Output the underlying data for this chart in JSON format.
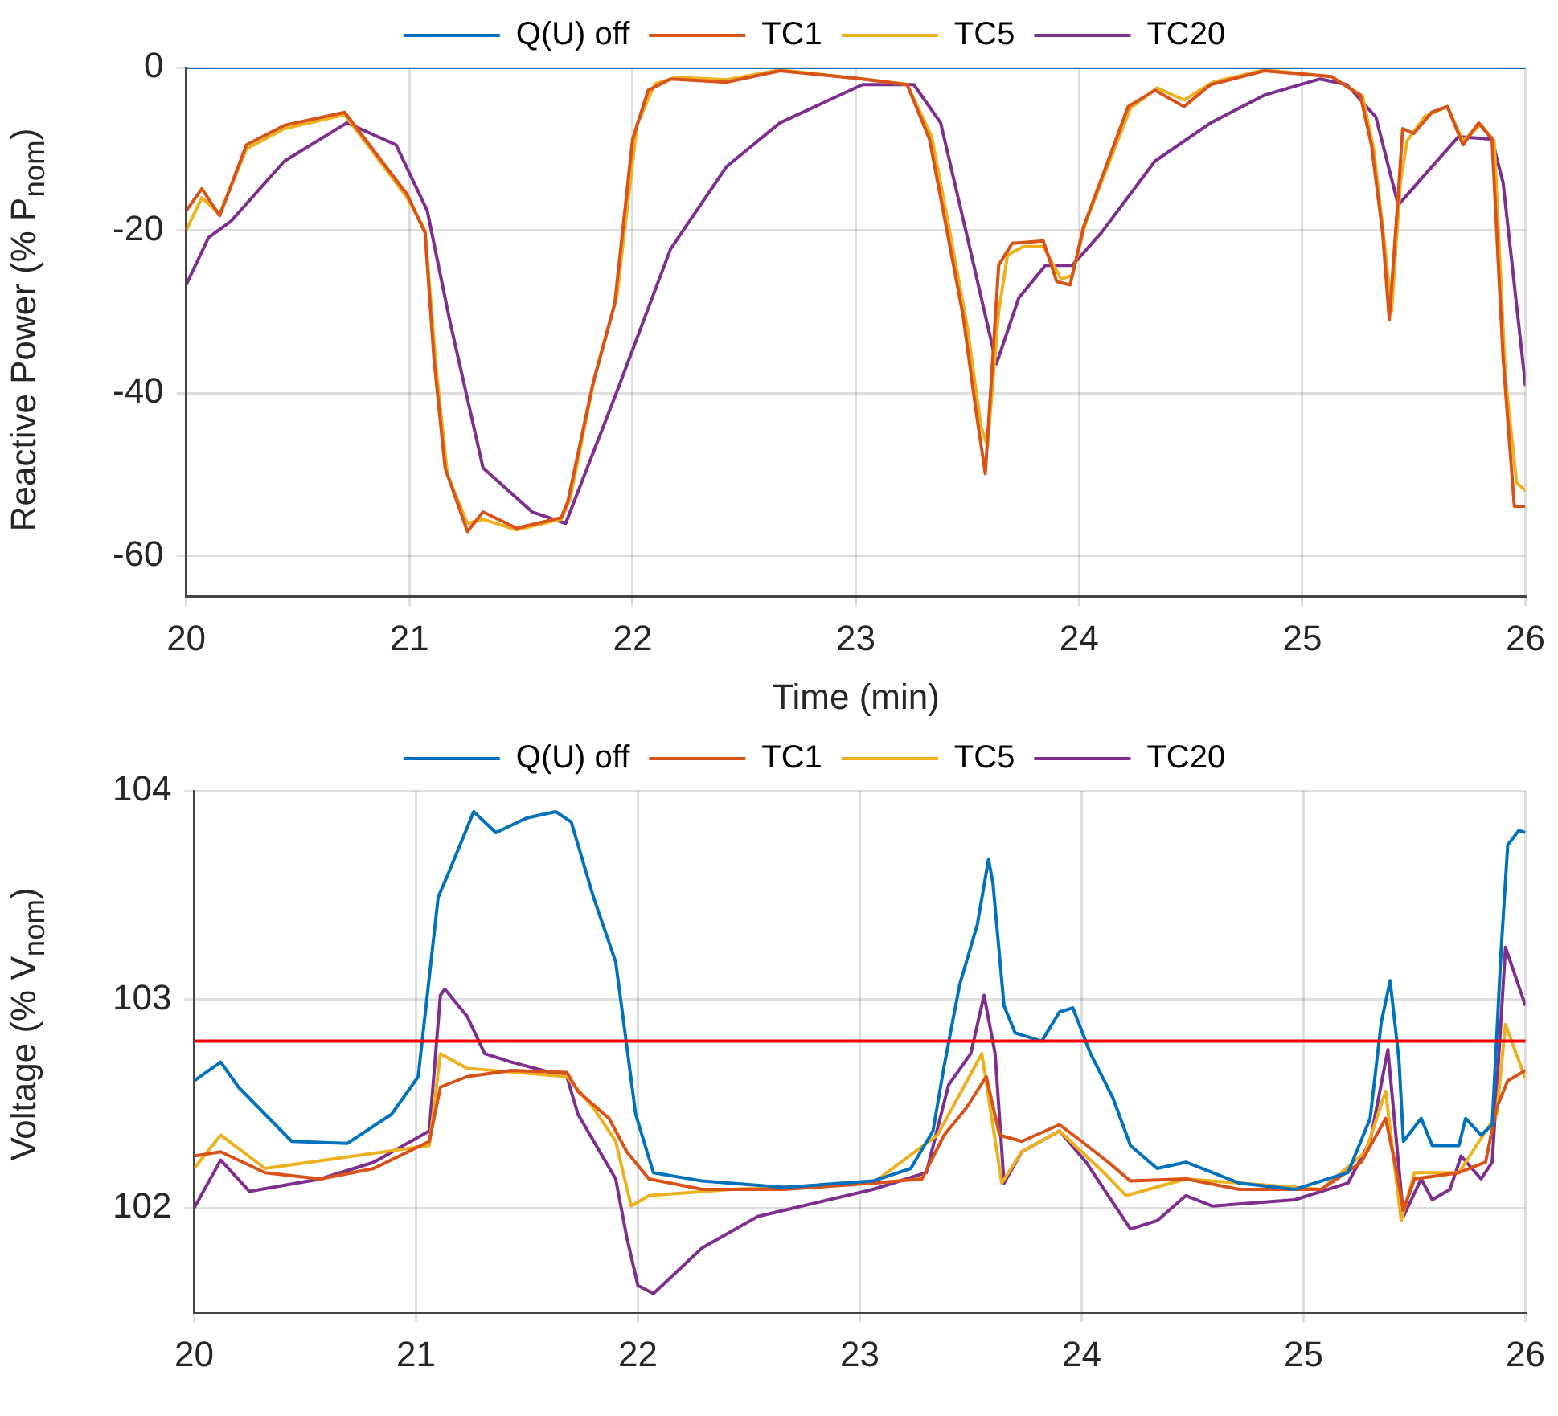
{
  "chart_data": [
    {
      "type": "line",
      "xlabel": "Time (min)",
      "ylabel": "Reactive Power (% P$_{nom}$)",
      "xlim": [
        20,
        26
      ],
      "xticks": [
        20,
        21,
        22,
        23,
        24,
        25,
        26
      ],
      "ylim": [
        -65,
        0
      ],
      "yticks": [
        -60,
        -40,
        -20,
        0
      ],
      "grid": true,
      "legend": "top",
      "series": [
        {
          "name": "Q(U) off",
          "color": "#0072bd",
          "x": [
            20,
            26
          ],
          "values": [
            0,
            0
          ]
        },
        {
          "name": "TC1",
          "color": "#d95319",
          "x": [
            20,
            20.07,
            20.15,
            20.27,
            20.44,
            20.71,
            20.84,
            20.99,
            21.07,
            21.11,
            21.16,
            21.26,
            21.33,
            21.48,
            21.68,
            21.71,
            21.82,
            21.92,
            22.0,
            22.07,
            22.17,
            22.42,
            22.66,
            23.03,
            23.23,
            23.33,
            23.41,
            23.48,
            23.54,
            23.58,
            23.64,
            23.7,
            23.84,
            23.9,
            23.96,
            24.02,
            24.12,
            24.22,
            24.34,
            24.47,
            24.59,
            24.83,
            25.13,
            25.26,
            25.31,
            25.36,
            25.39,
            25.43,
            25.45,
            25.5,
            25.58,
            25.65,
            25.72,
            25.79,
            25.85,
            25.9,
            25.95,
            26
          ],
          "values": [
            -17.6,
            -14.9,
            -18.2,
            -9.5,
            -7.1,
            -5.5,
            -10.2,
            -15.6,
            -20.3,
            -35.8,
            -49.2,
            -57,
            -54.6,
            -56.6,
            -55.3,
            -53.3,
            -39.1,
            -29,
            -8.8,
            -2.8,
            -1.4,
            -1.8,
            -0.4,
            -1.4,
            -2.1,
            -8.8,
            -20.3,
            -30.4,
            -42.5,
            -49.9,
            -24.3,
            -21.6,
            -21.3,
            -26.3,
            -26.7,
            -19.6,
            -12.2,
            -4.8,
            -2.8,
            -4.8,
            -2.1,
            -0.4,
            -1.1,
            -3.4,
            -9.5,
            -20.3,
            -31,
            -15.6,
            -7.5,
            -8.1,
            -5.5,
            -4.8,
            -9.5,
            -6.8,
            -8.8,
            -35.8,
            -53.9,
            -53.9
          ]
        },
        {
          "name": "TC5",
          "color": "#edb120",
          "x": [
            20,
            20.07,
            20.15,
            20.27,
            20.44,
            20.71,
            20.84,
            20.99,
            21.07,
            21.12,
            21.17,
            21.26,
            21.33,
            21.48,
            21.68,
            21.72,
            21.83,
            21.93,
            22.02,
            22.1,
            22.2,
            22.42,
            22.66,
            23.03,
            23.23,
            23.34,
            23.42,
            23.5,
            23.56,
            23.59,
            23.64,
            23.68,
            23.75,
            23.84,
            23.92,
            23.97,
            24.03,
            24.13,
            24.23,
            24.35,
            24.47,
            24.6,
            24.83,
            25.13,
            25.27,
            25.32,
            25.37,
            25.4,
            25.44,
            25.47,
            25.55,
            25.65,
            25.72,
            25.8,
            25.86,
            25.91,
            25.96,
            26
          ],
          "values": [
            -20,
            -16,
            -18,
            -10,
            -7.5,
            -5.8,
            -10.5,
            -16,
            -20,
            -37,
            -50,
            -56,
            -55.5,
            -56.8,
            -55.5,
            -53,
            -38,
            -28,
            -7,
            -2,
            -1.2,
            -1.5,
            -0.3,
            -1.4,
            -2.1,
            -8.5,
            -20,
            -32,
            -44,
            -46.5,
            -30,
            -23,
            -22,
            -22,
            -26,
            -25.5,
            -19,
            -12,
            -5,
            -2.5,
            -4,
            -1.8,
            -0.3,
            -1.1,
            -3.5,
            -10,
            -22,
            -30,
            -14,
            -9,
            -6,
            -4.8,
            -9,
            -7,
            -9,
            -38,
            -51,
            -52
          ]
        },
        {
          "name": "TC20",
          "color": "#7e2f8e",
          "x": [
            20,
            20.1,
            20.2,
            20.44,
            20.72,
            20.94,
            21.08,
            21.18,
            21.33,
            21.55,
            21.7,
            21.92,
            22.17,
            22.42,
            22.66,
            23.03,
            23.26,
            23.38,
            23.5,
            23.63,
            23.73,
            23.85,
            23.97,
            24.1,
            24.34,
            24.59,
            24.83,
            25.08,
            25.2,
            25.33,
            25.43,
            25.58,
            25.7,
            25.85,
            25.9,
            26
          ],
          "values": [
            -26.7,
            -20.9,
            -18.9,
            -11.5,
            -6.8,
            -9.5,
            -17.6,
            -31,
            -49.2,
            -54.6,
            -56,
            -40.5,
            -22.3,
            -12.2,
            -6.8,
            -2.1,
            -2.1,
            -6.8,
            -20.9,
            -36.4,
            -28.3,
            -24.3,
            -24.3,
            -20.3,
            -11.5,
            -6.8,
            -3.4,
            -1.4,
            -2.1,
            -6.1,
            -16.9,
            -12.2,
            -8.5,
            -8.8,
            -14.2,
            -39.1
          ]
        }
      ]
    },
    {
      "type": "line",
      "ylabel": "Voltage (% V$_{nom}$)",
      "xlim": [
        20,
        26
      ],
      "xticks": [
        20,
        21,
        22,
        23,
        24,
        25,
        26
      ],
      "ylim": [
        101.5,
        104
      ],
      "yticks": [
        102,
        103,
        104
      ],
      "grid": true,
      "legend": "top",
      "ref_lines": [
        {
          "axis": "y",
          "value": 102.8,
          "color": "#ff0000"
        }
      ],
      "series": [
        {
          "name": "Q(U) off",
          "color": "#0072bd",
          "x": [
            20,
            20.12,
            20.2,
            20.44,
            20.69,
            20.89,
            21.01,
            21.1,
            21.16,
            21.26,
            21.36,
            21.5,
            21.63,
            21.7,
            21.8,
            21.9,
            21.92,
            21.99,
            22.07,
            22.29,
            22.66,
            23.06,
            23.23,
            23.33,
            23.38,
            23.45,
            23.53,
            23.58,
            23.6,
            23.65,
            23.7,
            23.82,
            23.9,
            23.96,
            24.04,
            24.14,
            24.22,
            24.34,
            24.47,
            24.71,
            24.96,
            25.2,
            25.3,
            25.35,
            25.39,
            25.43,
            25.45,
            25.53,
            25.58,
            25.7,
            25.73,
            25.8,
            25.85,
            25.89,
            25.92,
            25.97,
            26
          ],
          "values": [
            102.61,
            102.7,
            102.58,
            102.32,
            102.31,
            102.45,
            102.63,
            103.49,
            103.64,
            103.9,
            103.8,
            103.87,
            103.9,
            103.85,
            103.49,
            103.18,
            103.02,
            102.45,
            102.17,
            102.13,
            102.1,
            102.13,
            102.19,
            102.37,
            102.68,
            103.07,
            103.36,
            103.67,
            103.56,
            102.97,
            102.84,
            102.8,
            102.94,
            102.96,
            102.74,
            102.53,
            102.3,
            102.19,
            102.22,
            102.12,
            102.09,
            102.17,
            102.43,
            102.89,
            103.09,
            102.71,
            102.32,
            102.43,
            102.3,
            102.3,
            102.43,
            102.35,
            102.4,
            103.23,
            103.74,
            103.81,
            103.8
          ]
        },
        {
          "name": "TC1",
          "color": "#d95319",
          "x": [
            20,
            20.12,
            20.32,
            20.57,
            20.81,
            21.06,
            21.11,
            21.23,
            21.43,
            21.68,
            21.73,
            21.87,
            21.95,
            22.05,
            22.29,
            22.66,
            23.06,
            23.28,
            23.38,
            23.48,
            23.57,
            23.63,
            23.73,
            23.9,
            24.0,
            24.12,
            24.22,
            24.47,
            24.71,
            25.08,
            25.26,
            25.37,
            25.42,
            25.45,
            25.5,
            25.7,
            25.82,
            25.87,
            25.92,
            26
          ],
          "values": [
            102.25,
            102.27,
            102.17,
            102.14,
            102.19,
            102.32,
            102.58,
            102.63,
            102.66,
            102.65,
            102.56,
            102.43,
            102.27,
            102.14,
            102.09,
            102.09,
            102.12,
            102.14,
            102.35,
            102.48,
            102.63,
            102.35,
            102.32,
            102.4,
            102.32,
            102.22,
            102.13,
            102.14,
            102.09,
            102.09,
            102.22,
            102.43,
            102.17,
            101.99,
            102.14,
            102.17,
            102.22,
            102.48,
            102.61,
            102.66
          ]
        },
        {
          "name": "TC5",
          "color": "#edb120",
          "x": [
            20,
            20.12,
            20.32,
            21.06,
            21.11,
            21.23,
            21.68,
            21.8,
            21.9,
            21.97,
            22.05,
            22.42,
            23.06,
            23.35,
            23.55,
            23.64,
            23.73,
            23.9,
            24.1,
            24.2,
            24.47,
            25.08,
            25.28,
            25.37,
            25.44,
            25.5,
            25.7,
            25.87,
            25.91,
            26
          ],
          "values": [
            102.19,
            102.35,
            102.19,
            102.3,
            102.74,
            102.67,
            102.63,
            102.48,
            102.32,
            102.01,
            102.06,
            102.09,
            102.12,
            102.35,
            102.74,
            102.12,
            102.27,
            102.37,
            102.17,
            102.06,
            102.14,
            102.09,
            102.27,
            102.56,
            101.94,
            102.17,
            102.17,
            102.45,
            102.88,
            102.62
          ]
        },
        {
          "name": "TC20",
          "color": "#7e2f8e",
          "x": [
            20,
            20.12,
            20.25,
            20.57,
            20.81,
            21.06,
            21.11,
            21.13,
            21.23,
            21.31,
            21.43,
            21.68,
            21.73,
            21.9,
            21.95,
            22.0,
            22.07,
            22.29,
            22.54,
            23.06,
            23.3,
            23.4,
            23.5,
            23.56,
            23.61,
            23.65,
            23.73,
            23.9,
            24.02,
            24.12,
            24.22,
            24.34,
            24.47,
            24.59,
            24.96,
            25.2,
            25.3,
            25.38,
            25.45,
            25.53,
            25.58,
            25.66,
            25.71,
            25.8,
            25.85,
            25.91,
            26
          ],
          "values": [
            102.0,
            102.23,
            102.08,
            102.14,
            102.22,
            102.37,
            103.02,
            103.05,
            102.92,
            102.74,
            102.7,
            102.63,
            102.45,
            102.14,
            101.86,
            101.63,
            101.59,
            101.81,
            101.96,
            102.09,
            102.17,
            102.59,
            102.74,
            103.02,
            102.74,
            102.12,
            102.27,
            102.37,
            102.22,
            102.06,
            101.9,
            101.94,
            102.06,
            102.01,
            102.04,
            102.12,
            102.32,
            102.76,
            101.96,
            102.14,
            102.04,
            102.09,
            102.25,
            102.14,
            102.22,
            103.25,
            102.97
          ]
        }
      ]
    }
  ]
}
